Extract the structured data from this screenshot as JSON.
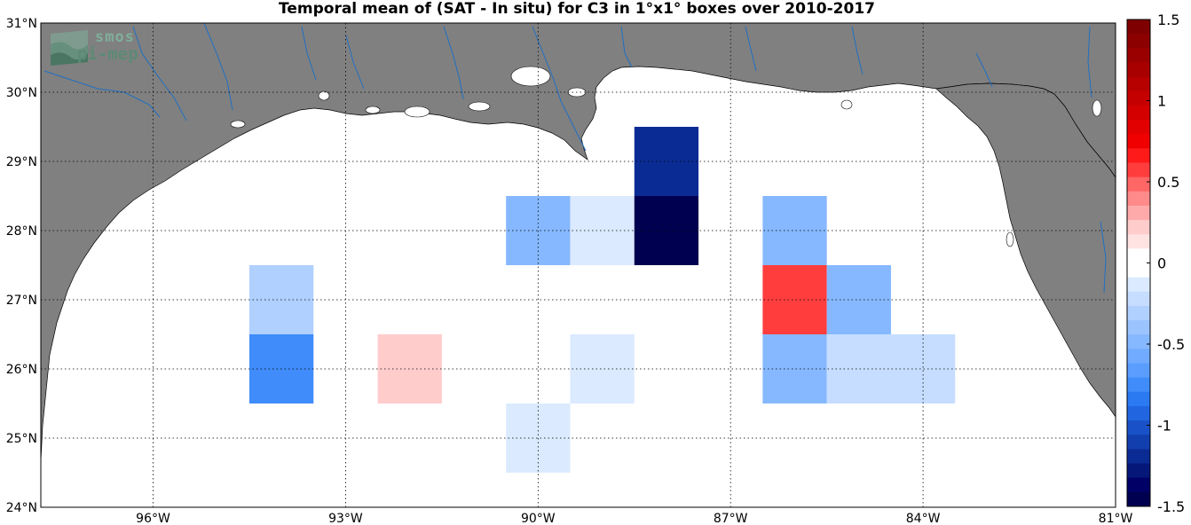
{
  "title": "Temporal mean of (SAT - In situ) for C3 in 1°x1° boxes over 2010-2017",
  "logo": {
    "line1": "smos",
    "line2": "pi-mep"
  },
  "map": {
    "lon_range": [
      -97.75,
      -81
    ],
    "lat_range": [
      24,
      31
    ],
    "lon_ticks": [
      {
        "value": -96,
        "label": "96°W"
      },
      {
        "value": -93,
        "label": "93°W"
      },
      {
        "value": -90,
        "label": "90°W"
      },
      {
        "value": -87,
        "label": "87°W"
      },
      {
        "value": -84,
        "label": "84°W"
      },
      {
        "value": -81,
        "label": "81°W"
      }
    ],
    "lat_ticks": [
      {
        "value": 24,
        "label": "24°N"
      },
      {
        "value": 25,
        "label": "25°N"
      },
      {
        "value": 26,
        "label": "26°N"
      },
      {
        "value": 27,
        "label": "27°N"
      },
      {
        "value": 28,
        "label": "28°N"
      },
      {
        "value": 29,
        "label": "29°N"
      },
      {
        "value": 30,
        "label": "30°N"
      },
      {
        "value": 31,
        "label": "31°N"
      }
    ],
    "land_color": "#808080",
    "ocean_color": "#ffffff",
    "river_color": "#1f6fc2",
    "grid": true
  },
  "chart_data": {
    "type": "heatmap",
    "title": "Temporal mean of (SAT - In situ) for C3 in 1°x1° boxes over 2010-2017",
    "cell_size_deg": 1,
    "clim": [
      -1.5,
      1.5
    ],
    "cells": [
      {
        "lon": -94,
        "lat": 27,
        "value": -0.35
      },
      {
        "lon": -94,
        "lat": 26,
        "value": -0.75
      },
      {
        "lon": -92,
        "lat": 26,
        "value": 0.25
      },
      {
        "lon": -90,
        "lat": 28,
        "value": -0.5
      },
      {
        "lon": -89,
        "lat": 28,
        "value": -0.15
      },
      {
        "lon": -88,
        "lat": 29,
        "value": -1.15
      },
      {
        "lon": -88,
        "lat": 28,
        "value": -1.5
      },
      {
        "lon": -89,
        "lat": 26,
        "value": -0.15
      },
      {
        "lon": -90,
        "lat": 25,
        "value": -0.15
      },
      {
        "lon": -86,
        "lat": 28,
        "value": -0.5
      },
      {
        "lon": -86,
        "lat": 27,
        "value": 0.55
      },
      {
        "lon": -85,
        "lat": 27,
        "value": -0.45
      },
      {
        "lon": -86,
        "lat": 26,
        "value": -0.5
      },
      {
        "lon": -85,
        "lat": 26,
        "value": -0.25
      },
      {
        "lon": -84,
        "lat": 26,
        "value": -0.25
      }
    ]
  },
  "colorbar": {
    "ticks": [
      {
        "value": 1.5,
        "label": "1.5"
      },
      {
        "value": 1,
        "label": "1"
      },
      {
        "value": 0.5,
        "label": "0.5"
      },
      {
        "value": 0,
        "label": "0"
      },
      {
        "value": -0.5,
        "label": "-0.5"
      },
      {
        "value": -1,
        "label": "-1"
      },
      {
        "value": -1.5,
        "label": "-1.5"
      }
    ],
    "colors_top_to_bottom": [
      "#7f0000",
      "#8c0000",
      "#9a0000",
      "#a80000",
      "#b70000",
      "#c50000",
      "#d40000",
      "#e20000",
      "#f00000",
      "#ff1a1a",
      "#ff3d3d",
      "#ff6666",
      "#ff8a8a",
      "#ffaaaa",
      "#ffcccc",
      "#ffe3e3",
      "#ffffff",
      "#ffffff",
      "#dbeaff",
      "#c6ddff",
      "#b0d0ff",
      "#9bc4ff",
      "#86b8ff",
      "#70abff",
      "#5a9dff",
      "#3f8cfa",
      "#2b7af2",
      "#2166e0",
      "#1952c8",
      "#123fae",
      "#0b2b94",
      "#05187a",
      "#000066",
      "#000050"
    ]
  }
}
